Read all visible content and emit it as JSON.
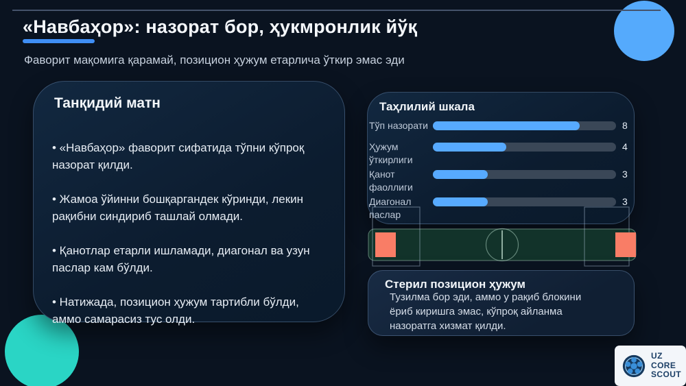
{
  "slide": {
    "title": "«Навбаҳор»: назорат бор, ҳукмронлик йўқ",
    "subtitle": "Фаворит мақомига қарамай, позицион ҳужум етарлича ўткир эмас эди"
  },
  "critique_card": {
    "title": "Танқидий матн",
    "bullets": [
      "• «Навбаҳор» фаворит сифатида тўпни кўпроқ назорат қилди.",
      "• Жамоа ўйинни бошқаргандек кўринди, лекин рақибни синдириб ташлай олмади.",
      "• Қанотлар етарли ишламади, диагонал ва узун паслар кам бўлди.",
      "• Натижада, позицион ҳужум тартибли бўлди, аммо самарасиз тус олди."
    ]
  },
  "chart_data": {
    "type": "bar",
    "orientation": "horizontal",
    "title": "Таҳлилий шкала",
    "categories": [
      "Тўп назорати",
      "Ҳужум ўткирлиги",
      "Қанот фаоллиги",
      "Диагонал паслар"
    ],
    "values": [
      8,
      4,
      3,
      3
    ],
    "xlim": [
      0,
      10
    ],
    "value_labels_shown": true,
    "legend": false,
    "grid": false
  },
  "note_card": {
    "title": "Стерил позицион ҳужум",
    "body": "Тузилма бор эди, аммо у рақиб блокини ёриб киришга эмас, кўпроқ айланма назоратга хизмат қилди."
  },
  "logo": {
    "lines": [
      "UZ",
      "CORE",
      "SCOUT"
    ]
  },
  "colors": {
    "background": "#0a1320",
    "bar_fill": "#57aaff",
    "bar_track": "#3a4757",
    "underline": "#3f8ef5",
    "teal_circle": "#2ad5c5",
    "blue_circle": "#55aafc",
    "orange_zone": "#f97d66",
    "pitch_green": "#12332a",
    "logo_navy": "#1c3f66",
    "logo_ball_blue": "#3a8fd9"
  }
}
